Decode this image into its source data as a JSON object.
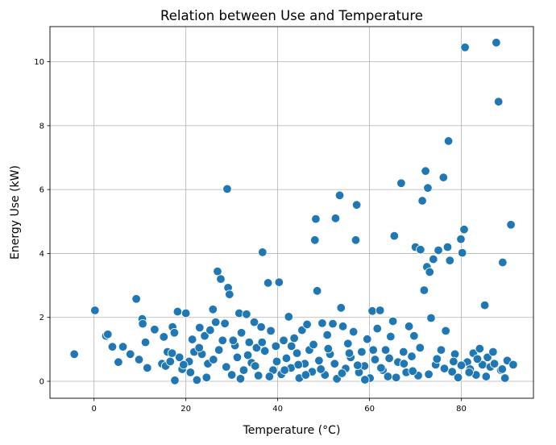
{
  "chart_data": {
    "type": "scatter",
    "title": "Relation between Use and Temperature",
    "xlabel": "Temperature (°C)",
    "ylabel": "Energy Use (kW)",
    "xlim": [
      -9.6,
      95.7
    ],
    "ylim": [
      -0.53,
      11.1
    ],
    "xticks": [
      0,
      20,
      40,
      60,
      80
    ],
    "yticks": [
      0,
      2,
      4,
      6,
      8,
      10
    ],
    "grid": true,
    "marker_color": "#1f77b4",
    "marker_edge_color": "#ffffff",
    "series": [
      {
        "points": [
          [
            -4.3,
            0.85
          ],
          [
            0.2,
            2.22
          ],
          [
            2.6,
            1.42
          ],
          [
            3.0,
            1.47
          ],
          [
            4.0,
            1.08
          ],
          [
            5.3,
            0.6
          ],
          [
            6.3,
            1.08
          ],
          [
            7.9,
            0.85
          ],
          [
            9.2,
            2.58
          ],
          [
            9.8,
            0.68
          ],
          [
            10.5,
            1.95
          ],
          [
            10.6,
            1.8
          ],
          [
            11.2,
            1.22
          ],
          [
            11.6,
            0.42
          ],
          [
            13.2,
            1.62
          ],
          [
            14.8,
            0.55
          ],
          [
            15.2,
            1.39
          ],
          [
            15.6,
            0.48
          ],
          [
            16.0,
            0.92
          ],
          [
            16.6,
            0.62
          ],
          [
            17.1,
            1.7
          ],
          [
            17.5,
            1.52
          ],
          [
            17.6,
            0.03
          ],
          [
            18.2,
            2.18
          ],
          [
            18.6,
            0.75
          ],
          [
            19.2,
            0.38
          ],
          [
            20.0,
            2.13
          ],
          [
            20.7,
            0.62
          ],
          [
            21.4,
            1.31
          ],
          [
            21.8,
            0.92
          ],
          [
            22.4,
            0.04
          ],
          [
            23.0,
            1.68
          ],
          [
            23.5,
            0.85
          ],
          [
            24.1,
            1.42
          ],
          [
            24.8,
            0.55
          ],
          [
            25.3,
            1.6
          ],
          [
            25.9,
            2.25
          ],
          [
            26.5,
            1.85
          ],
          [
            26.9,
            3.44
          ],
          [
            27.6,
            3.2
          ],
          [
            28.0,
            1.28
          ],
          [
            28.5,
            1.81
          ],
          [
            29.0,
            6.02
          ],
          [
            29.2,
            2.93
          ],
          [
            29.5,
            2.72
          ],
          [
            30.0,
            0.2
          ],
          [
            30.7,
            1.12
          ],
          [
            31.2,
            0.75
          ],
          [
            31.6,
            2.13
          ],
          [
            32.1,
            1.52
          ],
          [
            32.6,
            0.35
          ],
          [
            33.2,
            2.1
          ],
          [
            33.8,
            1.22
          ],
          [
            34.3,
            0.58
          ],
          [
            34.9,
            1.85
          ],
          [
            35.4,
            1.05
          ],
          [
            35.8,
            0.18
          ],
          [
            36.4,
            1.7
          ],
          [
            36.7,
            4.04
          ],
          [
            37.2,
            0.95
          ],
          [
            37.9,
            3.08
          ],
          [
            38.5,
            1.58
          ],
          [
            39.0,
            0.35
          ],
          [
            39.6,
            1.1
          ],
          [
            40.3,
            3.1
          ],
          [
            40.8,
            0.22
          ],
          [
            41.3,
            1.28
          ],
          [
            41.9,
            0.72
          ],
          [
            42.4,
            2.02
          ],
          [
            42.9,
            0.42
          ],
          [
            43.6,
            1.35
          ],
          [
            44.2,
            0.88
          ],
          [
            44.7,
            0.1
          ],
          [
            45.3,
            1.6
          ],
          [
            45.9,
            0.55
          ],
          [
            46.4,
            1.78
          ],
          [
            46.9,
            0.98
          ],
          [
            47.5,
            0.3
          ],
          [
            48.1,
            4.42
          ],
          [
            48.3,
            5.08
          ],
          [
            48.6,
            2.83
          ],
          [
            49.0,
            0.65
          ],
          [
            49.7,
            1.82
          ],
          [
            50.3,
            0.2
          ],
          [
            50.8,
            1.45
          ],
          [
            51.4,
            0.85
          ],
          [
            52.0,
            1.8
          ],
          [
            52.6,
            5.1
          ],
          [
            52.9,
            0.08
          ],
          [
            53.5,
            5.82
          ],
          [
            53.8,
            2.3
          ],
          [
            54.2,
            1.72
          ],
          [
            54.8,
            0.4
          ],
          [
            55.3,
            1.18
          ],
          [
            55.9,
            0.75
          ],
          [
            56.5,
            1.55
          ],
          [
            57.0,
            4.42
          ],
          [
            57.2,
            5.52
          ],
          [
            57.7,
            0.28
          ],
          [
            58.3,
            0.92
          ],
          [
            58.9,
            0.48
          ],
          [
            59.5,
            1.32
          ],
          [
            60.1,
            0.1
          ],
          [
            60.6,
            2.2
          ],
          [
            61.2,
            0.68
          ],
          [
            61.7,
            1.65
          ],
          [
            62.3,
            2.22
          ],
          [
            62.9,
            0.35
          ],
          [
            63.5,
            0.98
          ],
          [
            64.0,
            0.15
          ],
          [
            64.6,
            1.4
          ],
          [
            65.1,
            1.88
          ],
          [
            65.4,
            4.55
          ],
          [
            66.2,
            0.6
          ],
          [
            66.9,
            6.2
          ],
          [
            67.4,
            0.92
          ],
          [
            68.0,
            0.28
          ],
          [
            68.6,
            1.72
          ],
          [
            69.2,
            0.78
          ],
          [
            69.7,
            1.42
          ],
          [
            70.0,
            4.2
          ],
          [
            70.6,
            0.18
          ],
          [
            71.1,
            4.12
          ],
          [
            71.5,
            5.65
          ],
          [
            71.9,
            2.85
          ],
          [
            72.2,
            6.58
          ],
          [
            72.5,
            3.58
          ],
          [
            72.7,
            6.05
          ],
          [
            73.1,
            3.42
          ],
          [
            73.4,
            1.98
          ],
          [
            73.9,
            3.82
          ],
          [
            74.4,
            0.52
          ],
          [
            75.0,
            4.1
          ],
          [
            75.6,
            0.98
          ],
          [
            76.1,
            6.38
          ],
          [
            76.6,
            1.58
          ],
          [
            77.0,
            4.2
          ],
          [
            77.2,
            7.52
          ],
          [
            77.5,
            3.78
          ],
          [
            78.0,
            0.3
          ],
          [
            78.6,
            0.85
          ],
          [
            79.3,
            0.12
          ],
          [
            79.9,
            4.45
          ],
          [
            80.2,
            4.02
          ],
          [
            80.6,
            4.75
          ],
          [
            80.8,
            10.45
          ],
          [
            81.3,
            0.6
          ],
          [
            81.9,
            0.38
          ],
          [
            82.6,
            0.88
          ],
          [
            83.2,
            0.2
          ],
          [
            84.0,
            1.02
          ],
          [
            84.6,
            0.52
          ],
          [
            85.1,
            2.38
          ],
          [
            85.7,
            0.75
          ],
          [
            86.3,
            0.45
          ],
          [
            86.9,
            0.92
          ],
          [
            87.6,
            10.6
          ],
          [
            88.1,
            8.75
          ],
          [
            88.6,
            0.35
          ],
          [
            89.0,
            3.72
          ],
          [
            89.5,
            0.1
          ],
          [
            90.0,
            0.65
          ],
          [
            90.8,
            4.9
          ],
          [
            91.3,
            0.52
          ],
          [
            17.0,
            0.88
          ],
          [
            19.5,
            0.52
          ],
          [
            21.0,
            0.28
          ],
          [
            22.9,
            1.05
          ],
          [
            24.5,
            0.12
          ],
          [
            26.0,
            0.68
          ],
          [
            27.2,
            0.98
          ],
          [
            28.8,
            0.45
          ],
          [
            30.3,
            1.28
          ],
          [
            31.9,
            0.08
          ],
          [
            33.5,
            0.82
          ],
          [
            35.1,
            0.48
          ],
          [
            36.6,
            1.22
          ],
          [
            38.2,
            0.15
          ],
          [
            39.8,
            0.62
          ],
          [
            41.5,
            0.35
          ],
          [
            43.0,
            1.1
          ],
          [
            44.5,
            0.52
          ],
          [
            46.1,
            0.2
          ],
          [
            47.8,
            1.15
          ],
          [
            49.4,
            0.38
          ],
          [
            51.0,
            1.02
          ],
          [
            52.4,
            0.55
          ],
          [
            54.0,
            0.25
          ],
          [
            55.6,
            0.88
          ],
          [
            57.4,
            0.5
          ],
          [
            59.0,
            0.05
          ],
          [
            60.8,
            0.98
          ],
          [
            62.5,
            0.42
          ],
          [
            64.3,
            0.72
          ],
          [
            65.8,
            0.12
          ],
          [
            67.5,
            0.55
          ],
          [
            69.4,
            0.32
          ],
          [
            71.0,
            1.05
          ],
          [
            72.9,
            0.22
          ],
          [
            74.7,
            0.7
          ],
          [
            76.3,
            0.4
          ],
          [
            78.3,
            0.62
          ],
          [
            80.0,
            0.5
          ],
          [
            81.7,
            0.28
          ],
          [
            83.5,
            0.7
          ],
          [
            85.4,
            0.15
          ],
          [
            87.2,
            0.55
          ],
          [
            88.9,
            0.38
          ]
        ]
      }
    ]
  }
}
